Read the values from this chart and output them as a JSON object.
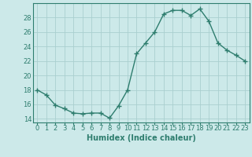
{
  "x": [
    0,
    1,
    2,
    3,
    4,
    5,
    6,
    7,
    8,
    9,
    10,
    11,
    12,
    13,
    14,
    15,
    16,
    17,
    18,
    19,
    20,
    21,
    22,
    23
  ],
  "y": [
    18.0,
    17.3,
    15.9,
    15.4,
    14.8,
    14.7,
    14.8,
    14.8,
    14.1,
    15.8,
    18.0,
    23.0,
    24.5,
    26.0,
    28.5,
    29.0,
    29.0,
    28.3,
    29.2,
    27.5,
    24.5,
    23.5,
    22.8,
    22.0
  ],
  "line_color": "#2e7d6e",
  "marker": "+",
  "marker_size": 4,
  "line_width": 1.0,
  "bg_color": "#cce9e9",
  "grid_color": "#aacfcf",
  "xlabel": "Humidex (Indice chaleur)",
  "xlim": [
    -0.5,
    23.5
  ],
  "ylim": [
    13.5,
    30.0
  ],
  "yticks": [
    14,
    16,
    18,
    20,
    22,
    24,
    26,
    28
  ],
  "xtick_labels": [
    "0",
    "1",
    "2",
    "3",
    "4",
    "5",
    "6",
    "7",
    "8",
    "9",
    "10",
    "11",
    "12",
    "13",
    "14",
    "15",
    "16",
    "17",
    "18",
    "19",
    "20",
    "21",
    "22",
    "23"
  ],
  "tick_fontsize": 6,
  "xlabel_fontsize": 7,
  "tick_color": "#2e7d6e",
  "label_color": "#2e7d6e",
  "axes_color": "#2e7d6e"
}
